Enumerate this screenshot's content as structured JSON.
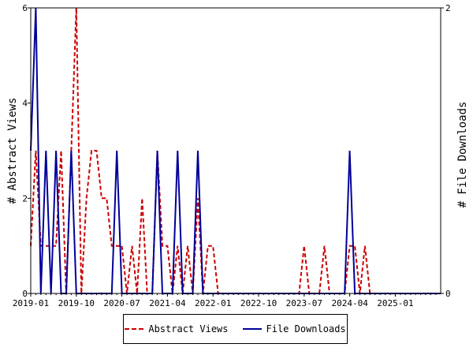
{
  "chart_data": {
    "type": "line",
    "x_unit": "month",
    "x_ticks": [
      "2019-01",
      "2019-10",
      "2020-07",
      "2021-04",
      "2022-01",
      "2022-10",
      "2023-07",
      "2024-04",
      "2025-01"
    ],
    "y_left": {
      "label": "# Abstract Views",
      "ylim": [
        0,
        6
      ],
      "ticks": [
        "0",
        "2",
        "4",
        "6"
      ]
    },
    "y_right": {
      "label": "# File Downloads",
      "ylim": [
        0,
        2
      ],
      "ticks": [
        "0",
        "2"
      ]
    },
    "legend_position": "bottom",
    "grid": false,
    "series": [
      {
        "name": "Abstract Views",
        "axis": "left",
        "color": "#cc0000",
        "style": "dashed",
        "points": [
          [
            "2019-01",
            1
          ],
          [
            "2019-02",
            3
          ],
          [
            "2019-03",
            1
          ],
          [
            "2019-04",
            1
          ],
          [
            "2019-05",
            1
          ],
          [
            "2019-06",
            1
          ],
          [
            "2019-07",
            3
          ],
          [
            "2019-08",
            0
          ],
          [
            "2019-09",
            3
          ],
          [
            "2019-10",
            6
          ],
          [
            "2019-11",
            0
          ],
          [
            "2019-12",
            2
          ],
          [
            "2020-01",
            3
          ],
          [
            "2020-02",
            3
          ],
          [
            "2020-03",
            2
          ],
          [
            "2020-04",
            2
          ],
          [
            "2020-05",
            1
          ],
          [
            "2020-06",
            1
          ],
          [
            "2020-07",
            1
          ],
          [
            "2020-08",
            0
          ],
          [
            "2020-09",
            1
          ],
          [
            "2020-10",
            0
          ],
          [
            "2020-11",
            2
          ],
          [
            "2020-12",
            0
          ],
          [
            "2021-01",
            0
          ],
          [
            "2021-02",
            3
          ],
          [
            "2021-03",
            1
          ],
          [
            "2021-04",
            1
          ],
          [
            "2021-05",
            0
          ],
          [
            "2021-06",
            1
          ],
          [
            "2021-07",
            0
          ],
          [
            "2021-08",
            1
          ],
          [
            "2021-09",
            0
          ],
          [
            "2021-10",
            2
          ],
          [
            "2021-11",
            0
          ],
          [
            "2021-12",
            1
          ],
          [
            "2022-01",
            1
          ],
          [
            "2022-02",
            0
          ],
          [
            "2022-03",
            0
          ],
          [
            "2022-04",
            0
          ],
          [
            "2022-05",
            0
          ],
          [
            "2022-06",
            0
          ],
          [
            "2022-07",
            0
          ],
          [
            "2022-08",
            0
          ],
          [
            "2022-09",
            0
          ],
          [
            "2022-10",
            0
          ],
          [
            "2022-11",
            0
          ],
          [
            "2022-12",
            0
          ],
          [
            "2023-01",
            0
          ],
          [
            "2023-02",
            0
          ],
          [
            "2023-03",
            0
          ],
          [
            "2023-04",
            0
          ],
          [
            "2023-05",
            0
          ],
          [
            "2023-06",
            0
          ],
          [
            "2023-07",
            1
          ],
          [
            "2023-08",
            0
          ],
          [
            "2023-09",
            0
          ],
          [
            "2023-10",
            0
          ],
          [
            "2023-11",
            1
          ],
          [
            "2023-12",
            0
          ],
          [
            "2024-01",
            0
          ],
          [
            "2024-02",
            0
          ],
          [
            "2024-03",
            0
          ],
          [
            "2024-04",
            1
          ],
          [
            "2024-05",
            1
          ],
          [
            "2024-06",
            0
          ],
          [
            "2024-07",
            1
          ],
          [
            "2024-08",
            0
          ],
          [
            "2024-09",
            0
          ],
          [
            "2024-10",
            0
          ],
          [
            "2024-11",
            0
          ],
          [
            "2024-12",
            0
          ],
          [
            "2025-01",
            0
          ],
          [
            "2025-02",
            0
          ],
          [
            "2025-03",
            0
          ],
          [
            "2025-04",
            0
          ],
          [
            "2025-05",
            0
          ],
          [
            "2025-06",
            0
          ],
          [
            "2025-07",
            0
          ],
          [
            "2025-08",
            0
          ],
          [
            "2025-09",
            0
          ],
          [
            "2025-10",
            0
          ]
        ]
      },
      {
        "name": "File Downloads",
        "axis": "right",
        "color": "#000099",
        "style": "solid",
        "points": [
          [
            "2019-01",
            1
          ],
          [
            "2019-02",
            2
          ],
          [
            "2019-03",
            0
          ],
          [
            "2019-04",
            1
          ],
          [
            "2019-05",
            0
          ],
          [
            "2019-06",
            1
          ],
          [
            "2019-07",
            0
          ],
          [
            "2019-08",
            0
          ],
          [
            "2019-09",
            1
          ],
          [
            "2019-10",
            0
          ],
          [
            "2019-11",
            0
          ],
          [
            "2019-12",
            0
          ],
          [
            "2020-01",
            0
          ],
          [
            "2020-02",
            0
          ],
          [
            "2020-03",
            0
          ],
          [
            "2020-04",
            0
          ],
          [
            "2020-05",
            0
          ],
          [
            "2020-06",
            1
          ],
          [
            "2020-07",
            0
          ],
          [
            "2020-08",
            0
          ],
          [
            "2020-09",
            0
          ],
          [
            "2020-10",
            0
          ],
          [
            "2020-11",
            0
          ],
          [
            "2020-12",
            0
          ],
          [
            "2021-01",
            0
          ],
          [
            "2021-02",
            1
          ],
          [
            "2021-03",
            0
          ],
          [
            "2021-04",
            0
          ],
          [
            "2021-05",
            0
          ],
          [
            "2021-06",
            1
          ],
          [
            "2021-07",
            0
          ],
          [
            "2021-08",
            0
          ],
          [
            "2021-09",
            0
          ],
          [
            "2021-10",
            1
          ],
          [
            "2021-11",
            0
          ],
          [
            "2021-12",
            0
          ],
          [
            "2022-01",
            0
          ],
          [
            "2022-02",
            0
          ],
          [
            "2022-03",
            0
          ],
          [
            "2022-04",
            0
          ],
          [
            "2022-05",
            0
          ],
          [
            "2022-06",
            0
          ],
          [
            "2022-07",
            0
          ],
          [
            "2022-08",
            0
          ],
          [
            "2022-09",
            0
          ],
          [
            "2022-10",
            0
          ],
          [
            "2022-11",
            0
          ],
          [
            "2022-12",
            0
          ],
          [
            "2023-01",
            0
          ],
          [
            "2023-02",
            0
          ],
          [
            "2023-03",
            0
          ],
          [
            "2023-04",
            0
          ],
          [
            "2023-05",
            0
          ],
          [
            "2023-06",
            0
          ],
          [
            "2023-07",
            0
          ],
          [
            "2023-08",
            0
          ],
          [
            "2023-09",
            0
          ],
          [
            "2023-10",
            0
          ],
          [
            "2023-11",
            0
          ],
          [
            "2023-12",
            0
          ],
          [
            "2024-01",
            0
          ],
          [
            "2024-02",
            0
          ],
          [
            "2024-03",
            0
          ],
          [
            "2024-04",
            1
          ],
          [
            "2024-05",
            0
          ],
          [
            "2024-06",
            0
          ],
          [
            "2024-07",
            0
          ],
          [
            "2024-08",
            0
          ],
          [
            "2024-09",
            0
          ],
          [
            "2024-10",
            0
          ],
          [
            "2024-11",
            0
          ],
          [
            "2024-12",
            0
          ],
          [
            "2025-01",
            0
          ],
          [
            "2025-02",
            0
          ],
          [
            "2025-03",
            0
          ],
          [
            "2025-04",
            0
          ],
          [
            "2025-05",
            0
          ],
          [
            "2025-06",
            0
          ],
          [
            "2025-07",
            0
          ],
          [
            "2025-08",
            0
          ],
          [
            "2025-09",
            0
          ],
          [
            "2025-10",
            0
          ]
        ]
      }
    ]
  }
}
